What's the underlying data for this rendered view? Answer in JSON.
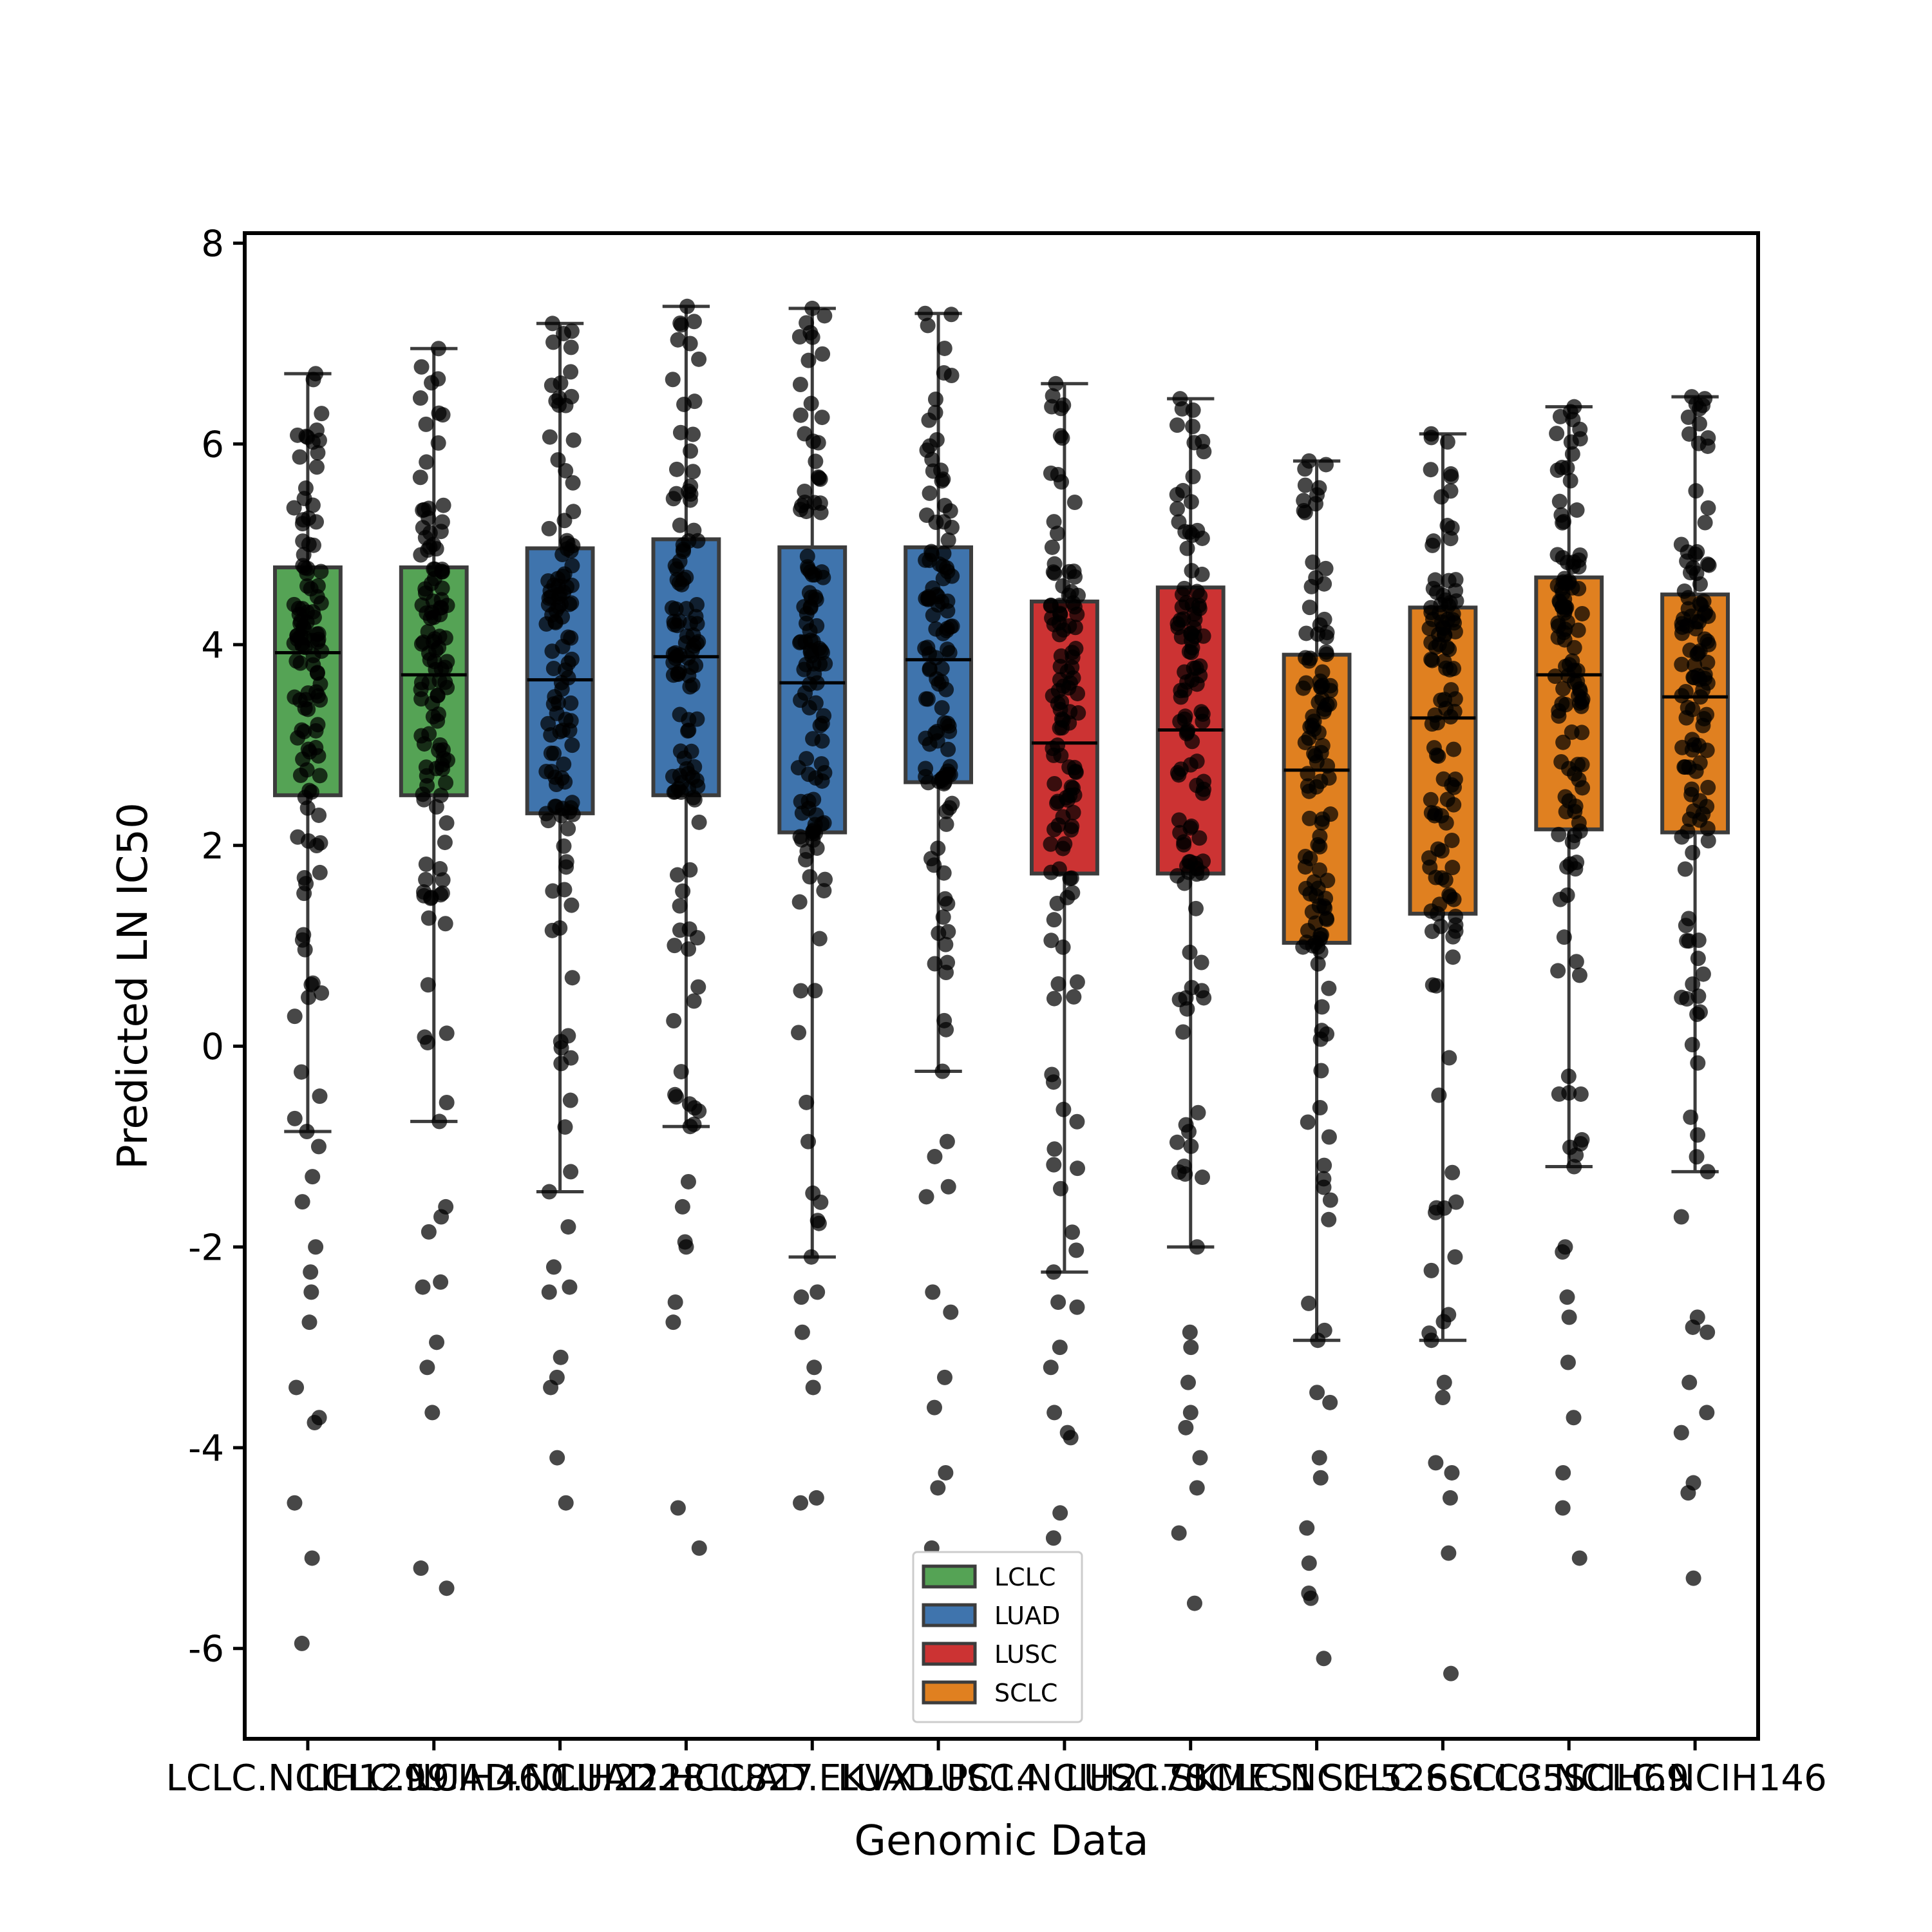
{
  "chart_data": {
    "type": "box",
    "xlabel": "Genomic Data",
    "ylabel": "Predicted LN IC50",
    "ylim": [
      -6.9,
      8.1
    ],
    "yticks": [
      -6,
      -4,
      -2,
      0,
      2,
      4,
      6,
      8
    ],
    "ytick_labels": [
      "-6",
      "-4",
      "-2",
      "0",
      "2",
      "4",
      "6",
      "8"
    ],
    "grid": false,
    "legend_position": "bottom-center",
    "legend": [
      {
        "label": "LCLC",
        "color": "#55a355"
      },
      {
        "label": "LUAD",
        "color": "#3f74ad"
      },
      {
        "label": "LUSC",
        "color": "#cc3333"
      },
      {
        "label": "SCLC",
        "color": "#e08020"
      }
    ],
    "categories": [
      {
        "label": "LCLC.NCIH1299",
        "group": "LCLC",
        "q1": 2.5,
        "median": 3.92,
        "q3": 4.77,
        "whisker_low": -0.85,
        "whisker_high": 6.7,
        "outliers": [
          -1.3,
          -1.0,
          -1.55,
          -2.0,
          -2.25,
          -2.45,
          -2.75,
          -3.4,
          -3.7,
          -3.75,
          -4.55,
          -5.1,
          -5.95
        ]
      },
      {
        "label": "LCLC.NCIH460",
        "group": "LCLC",
        "q1": 2.5,
        "median": 3.7,
        "q3": 4.77,
        "whisker_low": -0.75,
        "whisker_high": 6.95,
        "outliers": [
          -1.6,
          -1.7,
          -1.85,
          -2.35,
          -2.4,
          -2.95,
          -3.2,
          -3.65,
          -5.2,
          -5.4
        ]
      },
      {
        "label": "LUAD.NCIH2228",
        "group": "LUAD",
        "q1": 2.32,
        "median": 3.65,
        "q3": 4.96,
        "whisker_low": -1.45,
        "whisker_high": 7.2,
        "outliers": [
          -1.8,
          -2.2,
          -2.4,
          -2.45,
          -3.1,
          -3.3,
          -3.4,
          -4.1,
          -4.55
        ]
      },
      {
        "label": "LUAD.HCC827",
        "group": "LUAD",
        "q1": 2.5,
        "median": 3.88,
        "q3": 5.05,
        "whisker_low": -0.8,
        "whisker_high": 7.37,
        "outliers": [
          -1.35,
          -1.6,
          -1.95,
          -2.0,
          -2.55,
          -2.75,
          -4.6,
          -5.0
        ]
      },
      {
        "label": "LUAD.EKVX",
        "group": "LUAD",
        "q1": 2.13,
        "median": 3.62,
        "q3": 4.97,
        "whisker_low": -2.1,
        "whisker_high": 7.35,
        "outliers": [
          -2.45,
          -2.5,
          -2.85,
          -3.2,
          -3.4,
          -4.5,
          -4.55
        ]
      },
      {
        "label": "LUAD.PC14",
        "group": "LUAD",
        "q1": 2.63,
        "median": 3.85,
        "q3": 4.97,
        "whisker_low": -0.25,
        "whisker_high": 7.3,
        "outliers": [
          -0.95,
          -1.1,
          -1.4,
          -1.5,
          -2.45,
          -2.65,
          -3.3,
          -3.6,
          -4.25,
          -4.4,
          -5.0
        ]
      },
      {
        "label": "LUSC.NCIH2170",
        "group": "LUSC",
        "q1": 1.72,
        "median": 3.02,
        "q3": 4.43,
        "whisker_low": -2.25,
        "whisker_high": 6.6,
        "outliers": [
          -2.55,
          -2.6,
          -3.0,
          -3.2,
          -3.65,
          -3.85,
          -3.9,
          -4.65,
          -4.9
        ]
      },
      {
        "label": "LUSC.SKMES1",
        "group": "LUSC",
        "q1": 1.72,
        "median": 3.15,
        "q3": 4.57,
        "whisker_low": -2.0,
        "whisker_high": 6.45,
        "outliers": [
          -2.85,
          -3.0,
          -3.35,
          -3.65,
          -3.8,
          -4.1,
          -4.4,
          -4.85,
          -5.55
        ]
      },
      {
        "label": "SCLC.NCIH526",
        "group": "SCLC",
        "q1": 1.03,
        "median": 2.75,
        "q3": 3.9,
        "whisker_low": -2.93,
        "whisker_high": 5.83,
        "outliers": [
          -3.45,
          -3.55,
          -4.1,
          -4.3,
          -4.8,
          -5.15,
          -5.45,
          -5.5,
          -6.1
        ]
      },
      {
        "label": "SCLC.SCLC35",
        "group": "SCLC",
        "q1": 1.32,
        "median": 3.27,
        "q3": 4.37,
        "whisker_low": -2.93,
        "whisker_high": 6.1,
        "outliers": [
          -3.35,
          -3.5,
          -4.15,
          -4.25,
          -4.5,
          -5.05,
          -6.25
        ]
      },
      {
        "label": "SCLC.NCIH69",
        "group": "SCLC",
        "q1": 2.16,
        "median": 3.7,
        "q3": 4.67,
        "whisker_low": -1.2,
        "whisker_high": 6.37,
        "outliers": [
          -2.0,
          -2.05,
          -2.5,
          -2.7,
          -3.15,
          -3.7,
          -4.25,
          -4.6,
          -5.1
        ]
      },
      {
        "label": "SCLC.NCIH146",
        "group": "SCLC",
        "q1": 2.13,
        "median": 3.48,
        "q3": 4.5,
        "whisker_low": -1.25,
        "whisker_high": 6.47,
        "outliers": [
          -1.7,
          -2.7,
          -2.8,
          -2.85,
          -3.35,
          -3.65,
          -3.85,
          -4.35,
          -4.45,
          -5.3
        ]
      }
    ]
  },
  "colors": {
    "axis": "#000000",
    "box_edge": "#3c3c3c",
    "point": "#000000",
    "LCLC": "#55a355",
    "LUAD": "#3f74ad",
    "LUSC": "#cc3333",
    "SCLC": "#e08020"
  }
}
